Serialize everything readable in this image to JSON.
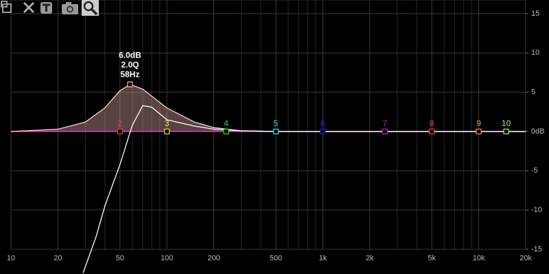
{
  "chart_data": {
    "type": "line",
    "xlog": true,
    "xlim": [
      10,
      20000
    ],
    "xticks": [
      10,
      20,
      50,
      100,
      200,
      500,
      {
        "value": 1000,
        "label": "1k"
      },
      {
        "value": 2000,
        "label": "2k"
      },
      {
        "value": 5000,
        "label": "5k"
      },
      {
        "value": 10000,
        "label": "10k"
      },
      {
        "value": 20000,
        "label": "20k"
      }
    ],
    "xminorticks": [
      30,
      40,
      60,
      70,
      80,
      90,
      300,
      400,
      600,
      700,
      800,
      900,
      3000,
      4000,
      6000,
      7000,
      8000,
      9000
    ],
    "ylim": [
      -15,
      15
    ],
    "yticks": [
      -15,
      -10,
      -5,
      {
        "value": 0,
        "label": "0dB"
      },
      5,
      10,
      15
    ],
    "grid": true,
    "series": [
      {
        "color": "#ffd6d6",
        "fill": "rgba(255,190,190,0.35)",
        "x": [
          10,
          20,
          30,
          40,
          50,
          58,
          70,
          100,
          150,
          200,
          300,
          500,
          20000
        ],
        "values": [
          0,
          0.3,
          1.2,
          3,
          5.2,
          6,
          5.4,
          3,
          1.2,
          0.5,
          0.1,
          0,
          0
        ]
      },
      {
        "color": "#ffffff",
        "x": [
          29,
          35,
          40,
          50,
          60,
          70,
          80,
          100,
          150,
          200,
          300,
          500,
          20000
        ],
        "values": [
          -18,
          -13.5,
          -9.5,
          -4.2,
          0.8,
          3.3,
          3.1,
          1.5,
          0.7,
          0.3,
          0.1,
          0,
          0
        ]
      }
    ],
    "markers": {
      "x": [
        58,
        50,
        100,
        240,
        500,
        1000,
        2500,
        5000,
        10000,
        15000
      ],
      "values": [
        6,
        0,
        0,
        0,
        0,
        0,
        0,
        0,
        0,
        0
      ],
      "labels": [
        null,
        "2",
        "3",
        "4",
        "5",
        "6",
        "7",
        "8",
        "9",
        "10"
      ],
      "colors": [
        "#ffb0b0",
        "#e04040",
        "#f0e040",
        "#30e030",
        "#30e0e0",
        "#2020e0",
        "#c020c0",
        "#f05020",
        "#f09040",
        "#a0f090"
      ]
    },
    "annotation": [
      "6.0dB",
      "2.0Q",
      "58Hz"
    ]
  }
}
